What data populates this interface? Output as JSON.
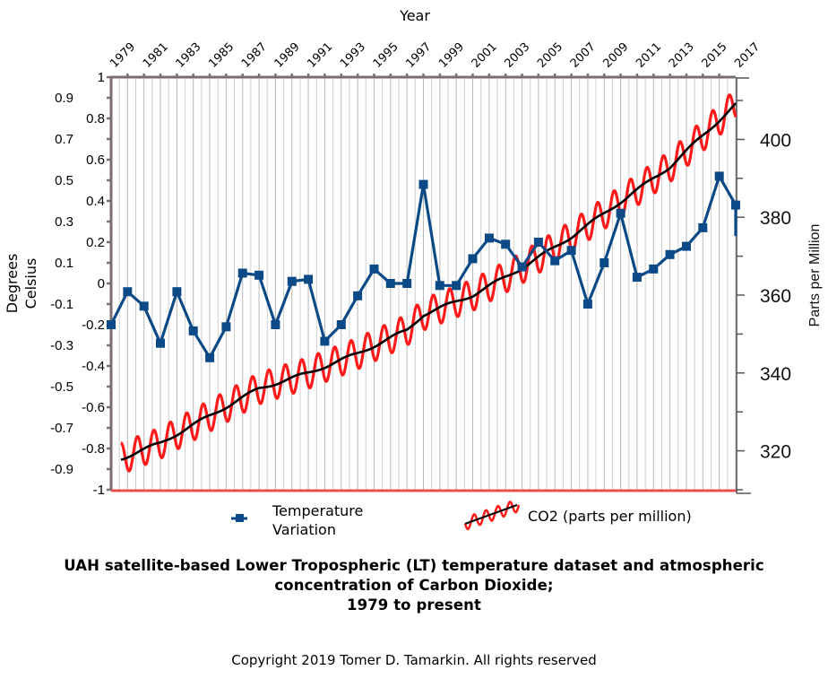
{
  "chart_data": {
    "type": "line",
    "title": "UAH satellite-based Lower Tropospheric (LT) temperature dataset and atmospheric concentration of Carbon Dioxide; 1979 to present",
    "title_lines": [
      "UAH satellite-based Lower Tropospheric (LT) temperature dataset and atmospheric",
      "concentration of Carbon Dioxide;",
      "1979 to present"
    ],
    "copyright": "Copyright 2019 Tomer D. Tamarkin.  All rights reserved",
    "xlabel": "Year",
    "ylabel_left": [
      "Degrees",
      "Celsius"
    ],
    "ylabel_right": "Parts per Million",
    "x_tick_labels": [
      "1979",
      "1981",
      "1983",
      "1985",
      "1987",
      "1989",
      "1991",
      "1993",
      "1995",
      "1997",
      "1999",
      "2001",
      "2003",
      "2005",
      "2007",
      "2009",
      "2011",
      "2013",
      "2015",
      "2017"
    ],
    "xlim": [
      1979,
      2017
    ],
    "ylim_left": [
      -1,
      1
    ],
    "y_tick_labels_left": [
      "1",
      "0.9",
      "0.8",
      "0.7",
      "0.6",
      "0.5",
      "0.4",
      "0.3",
      "0.2",
      "0.1",
      "0",
      "-0.1",
      "-0.2",
      "-0.3",
      "-0.4",
      "-0.5",
      "-0.6",
      "-0.7",
      "-0.8",
      "-0.9",
      "-1"
    ],
    "ylim_right": [
      310,
      416
    ],
    "y_tick_labels_right": [
      "400",
      "380",
      "360",
      "340",
      "320"
    ],
    "y_tick_values_right": [
      400,
      380,
      360,
      340,
      320
    ],
    "grid": "vertical",
    "legend_position": "bottom",
    "series": [
      {
        "name": "Temperature Variation",
        "legend_lines": [
          "Temperature",
          "Variation"
        ],
        "axis": "left",
        "color": "#0b4a86",
        "marker": "square",
        "x": [
          1979,
          1980,
          1981,
          1982,
          1983,
          1984,
          1985,
          1986,
          1987,
          1988,
          1989,
          1990,
          1991,
          1992,
          1993,
          1994,
          1995,
          1996,
          1997,
          1998,
          1999,
          2000,
          2001,
          2002,
          2003,
          2004,
          2005,
          2006,
          2007,
          2008,
          2009,
          2010,
          2011,
          2012,
          2013,
          2014,
          2015,
          2016,
          2017
        ],
        "values": [
          -0.2,
          -0.04,
          -0.11,
          -0.29,
          -0.04,
          -0.23,
          -0.36,
          -0.21,
          0.05,
          0.04,
          -0.2,
          0.01,
          0.02,
          -0.28,
          -0.2,
          -0.06,
          0.07,
          0.0,
          0.0,
          0.48,
          -0.01,
          -0.01,
          0.12,
          0.22,
          0.19,
          0.08,
          0.2,
          0.11,
          0.16,
          -0.1,
          0.1,
          0.34,
          0.03,
          0.07,
          0.14,
          0.18,
          0.27,
          0.52,
          0.38
        ],
        "trailing_value": 0.23
      },
      {
        "name": "CO2 (parts per million)",
        "axis": "right",
        "seasonal_color": "#ff1a1a",
        "trend_color": "#000000",
        "x": [
          1979.6,
          1982,
          1985,
          1988,
          1991,
          1994,
          1997,
          1998,
          2001,
          2004,
          2007,
          2010,
          2013,
          2015,
          2017
        ],
        "trend_ppm": [
          318,
          322,
          329,
          336,
          340,
          345,
          351,
          355,
          360,
          367,
          375,
          384,
          393,
          401,
          409
        ],
        "seasonal_amplitude_ppm": 4
      }
    ]
  }
}
